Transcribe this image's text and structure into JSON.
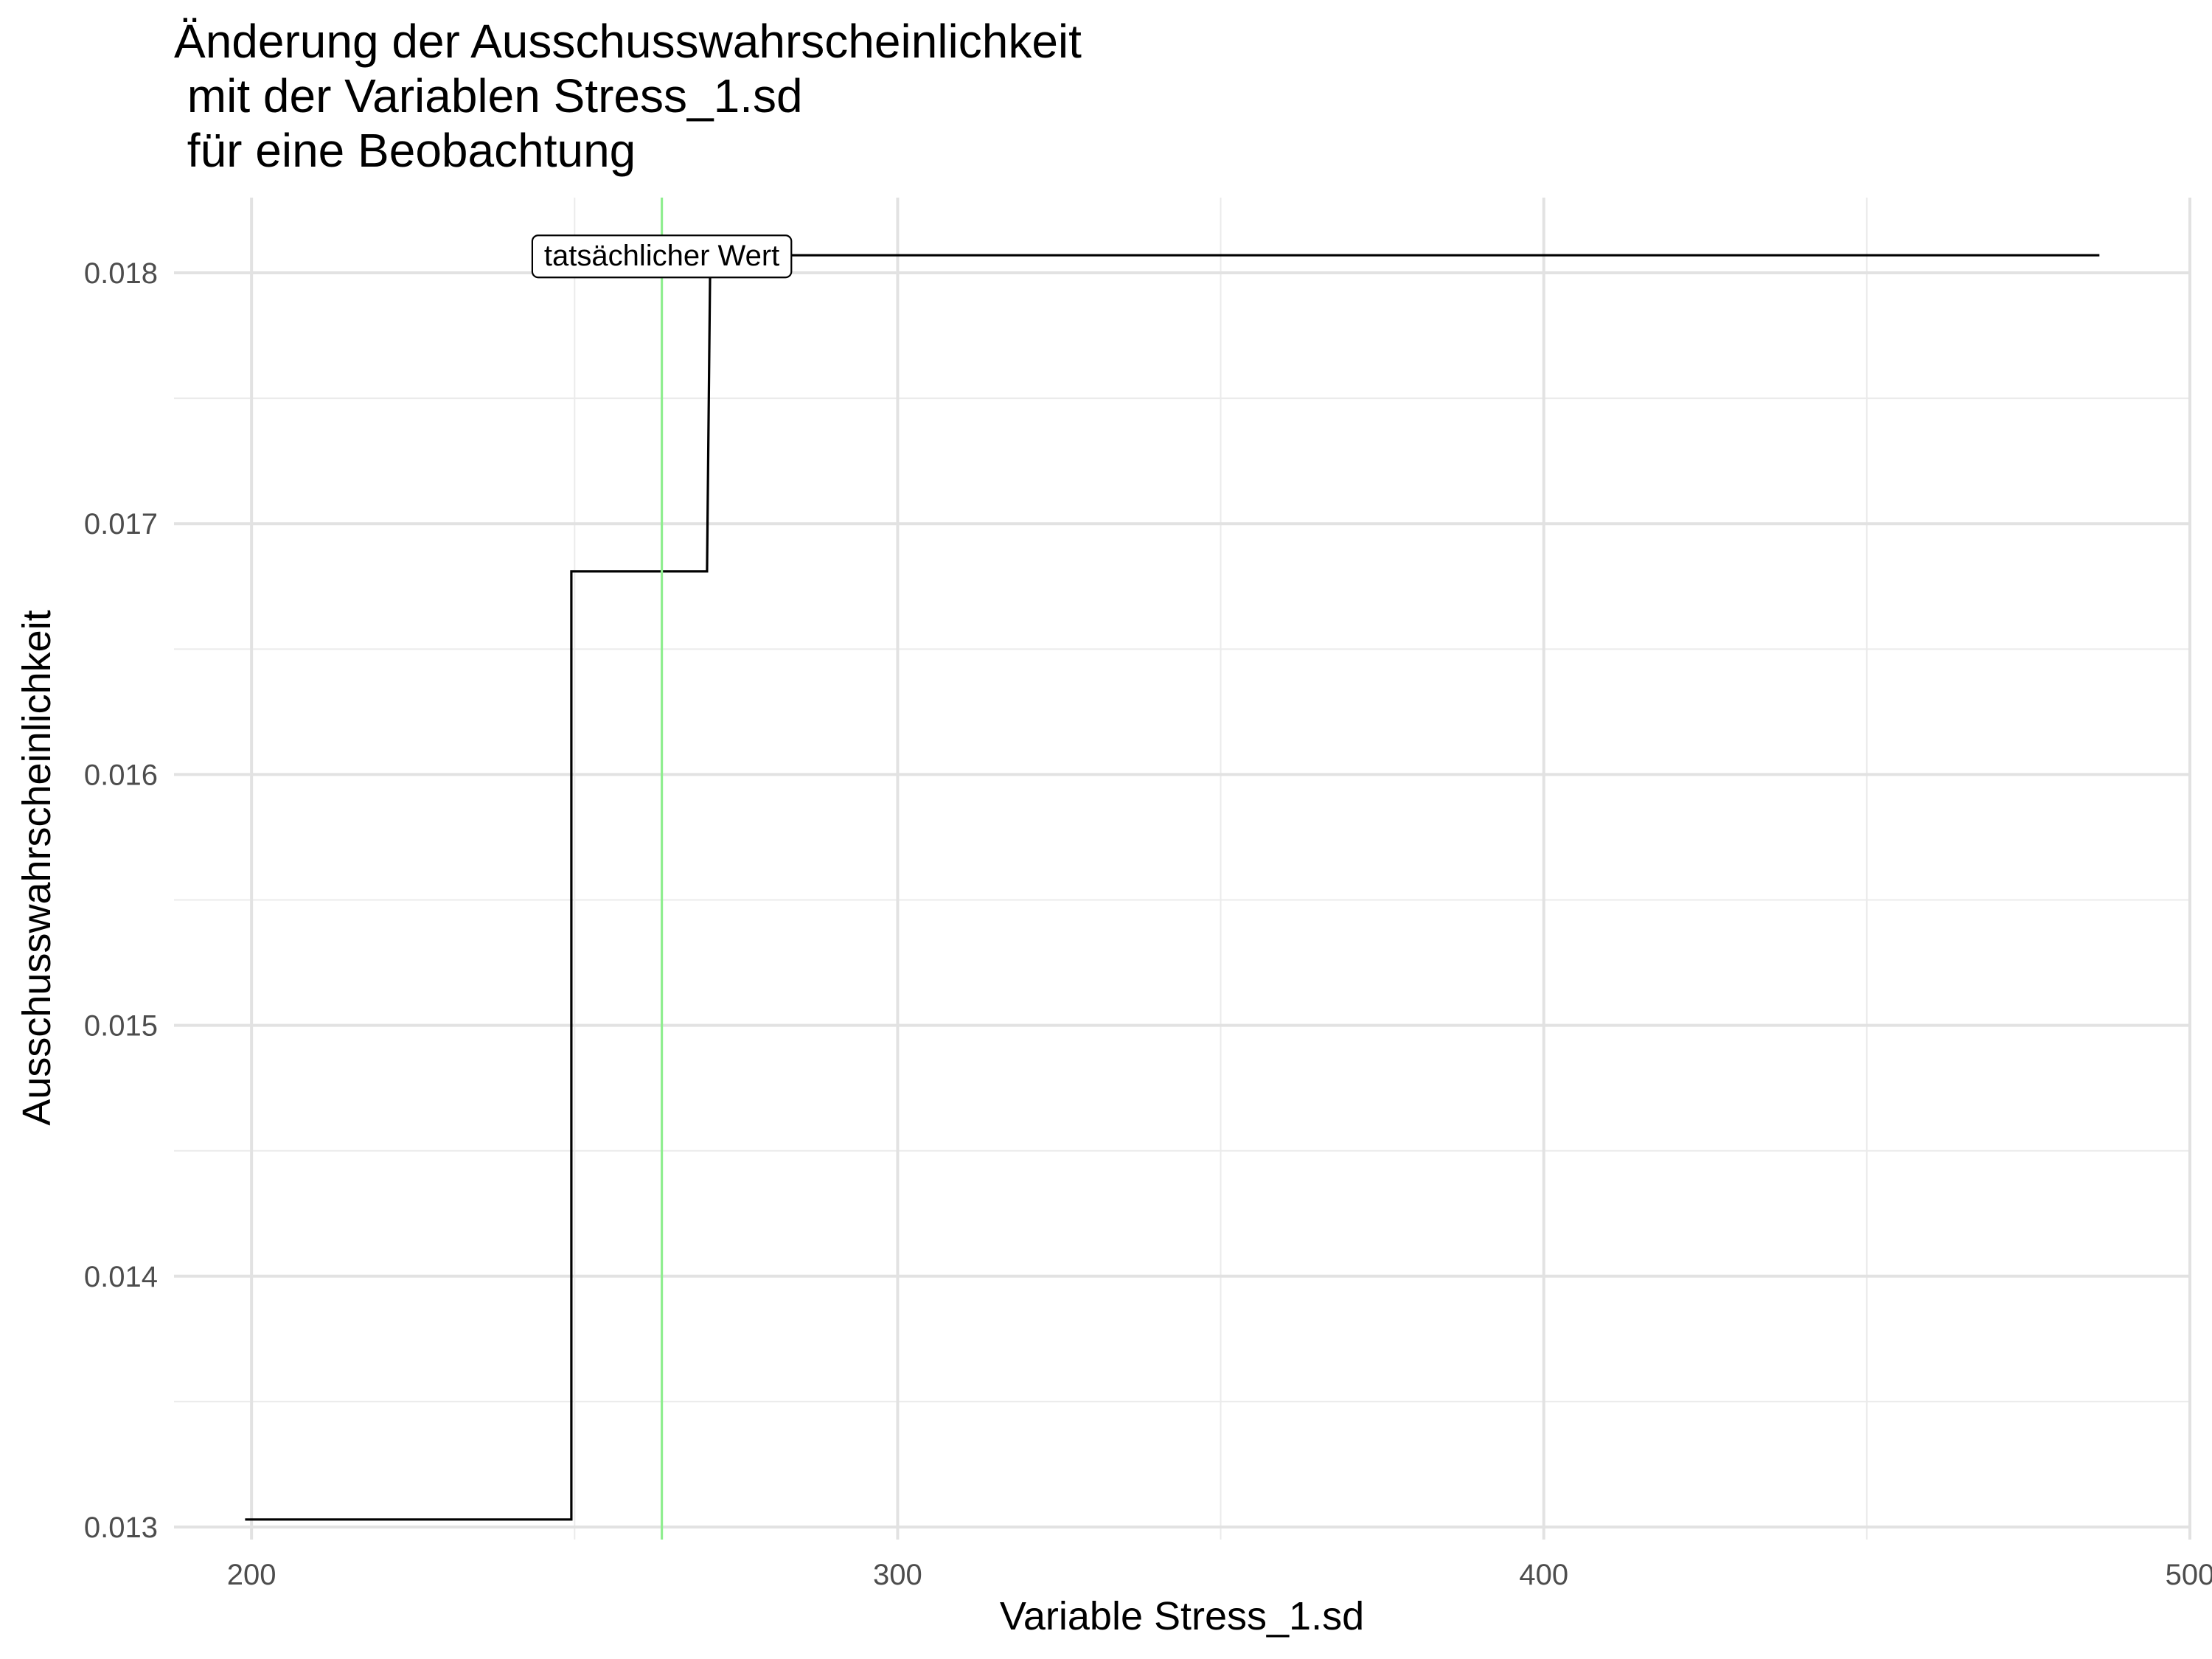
{
  "chart_data": {
    "type": "line",
    "step": true,
    "title_lines": [
      "Änderung der Ausschusswahrscheinlichkeit",
      " mit der Variablen Stress_1.sd",
      " für eine Beobachtung"
    ],
    "xlabel": "Variable Stress_1.sd",
    "ylabel": "Ausschusswahrscheinlichkeit",
    "xlim": [
      188,
      500
    ],
    "ylim": [
      0.01295,
      0.0183
    ],
    "x_major_ticks": [
      200,
      300,
      400,
      500
    ],
    "x_tick_labels": [
      "200",
      "300",
      "400",
      "500"
    ],
    "x_minor_ticks": [
      250,
      350,
      450
    ],
    "y_major_ticks": [
      0.013,
      0.014,
      0.015,
      0.016,
      0.017,
      0.018
    ],
    "y_tick_labels": [
      "0.013",
      "0.014",
      "0.015",
      "0.016",
      "0.017",
      "0.018"
    ],
    "y_minor_ticks": [
      0.0135,
      0.0145,
      0.0155,
      0.0165,
      0.0175
    ],
    "grid": true,
    "series": [
      {
        "color": "#000000",
        "x": [
          199,
          249.5,
          249.5,
          270.5,
          271,
          486
        ],
        "y": [
          0.01303,
          0.01303,
          0.01681,
          0.01681,
          0.01807,
          0.01807
        ]
      }
    ],
    "reference_line": {
      "x": 263.5,
      "color": "#90ee90"
    },
    "annotation": {
      "text": "tatsächlicher Wert",
      "x": 263.5,
      "y": 0.01807
    }
  }
}
